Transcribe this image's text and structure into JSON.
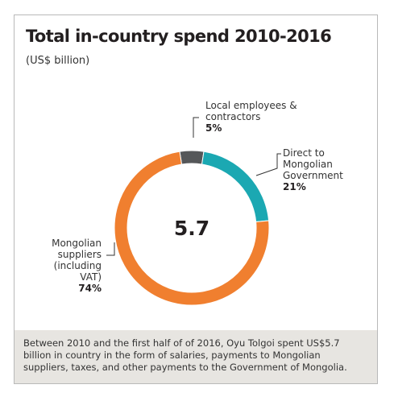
{
  "title": "Total in-country spend 2010-2016",
  "subtitle": "(US$ billion)",
  "center_value": "5.7",
  "footer_text": "Between 2010 and the first half of of 2016, Oyu Tolgoi spent US$5.7 billion in country in the form of salaries, payments to Mongolian suppliers, taxes, and other payments to the Government of Mongolia.",
  "labels": {
    "local": {
      "name": "Local employees & contractors",
      "pct": "5%"
    },
    "gov": {
      "name": "Direct to Mongolian Government",
      "pct": "21%"
    },
    "supp": {
      "name": "Mongolian suppliers (including VAT)",
      "pct": "74%"
    }
  },
  "chart_data": {
    "type": "pie",
    "style": "donut",
    "total": 5.7,
    "unit": "US$ billion",
    "title": "Total in-country spend 2010-2016",
    "subtitle": "(US$ billion)",
    "slices": [
      {
        "label": "Local employees & contractors",
        "value": 5,
        "color": "#555759"
      },
      {
        "label": "Direct to Mongolian Government",
        "value": 21,
        "color": "#1ba8b2"
      },
      {
        "label": "Mongolian suppliers (including VAT)",
        "value": 74,
        "color": "#f07f2f"
      }
    ]
  }
}
